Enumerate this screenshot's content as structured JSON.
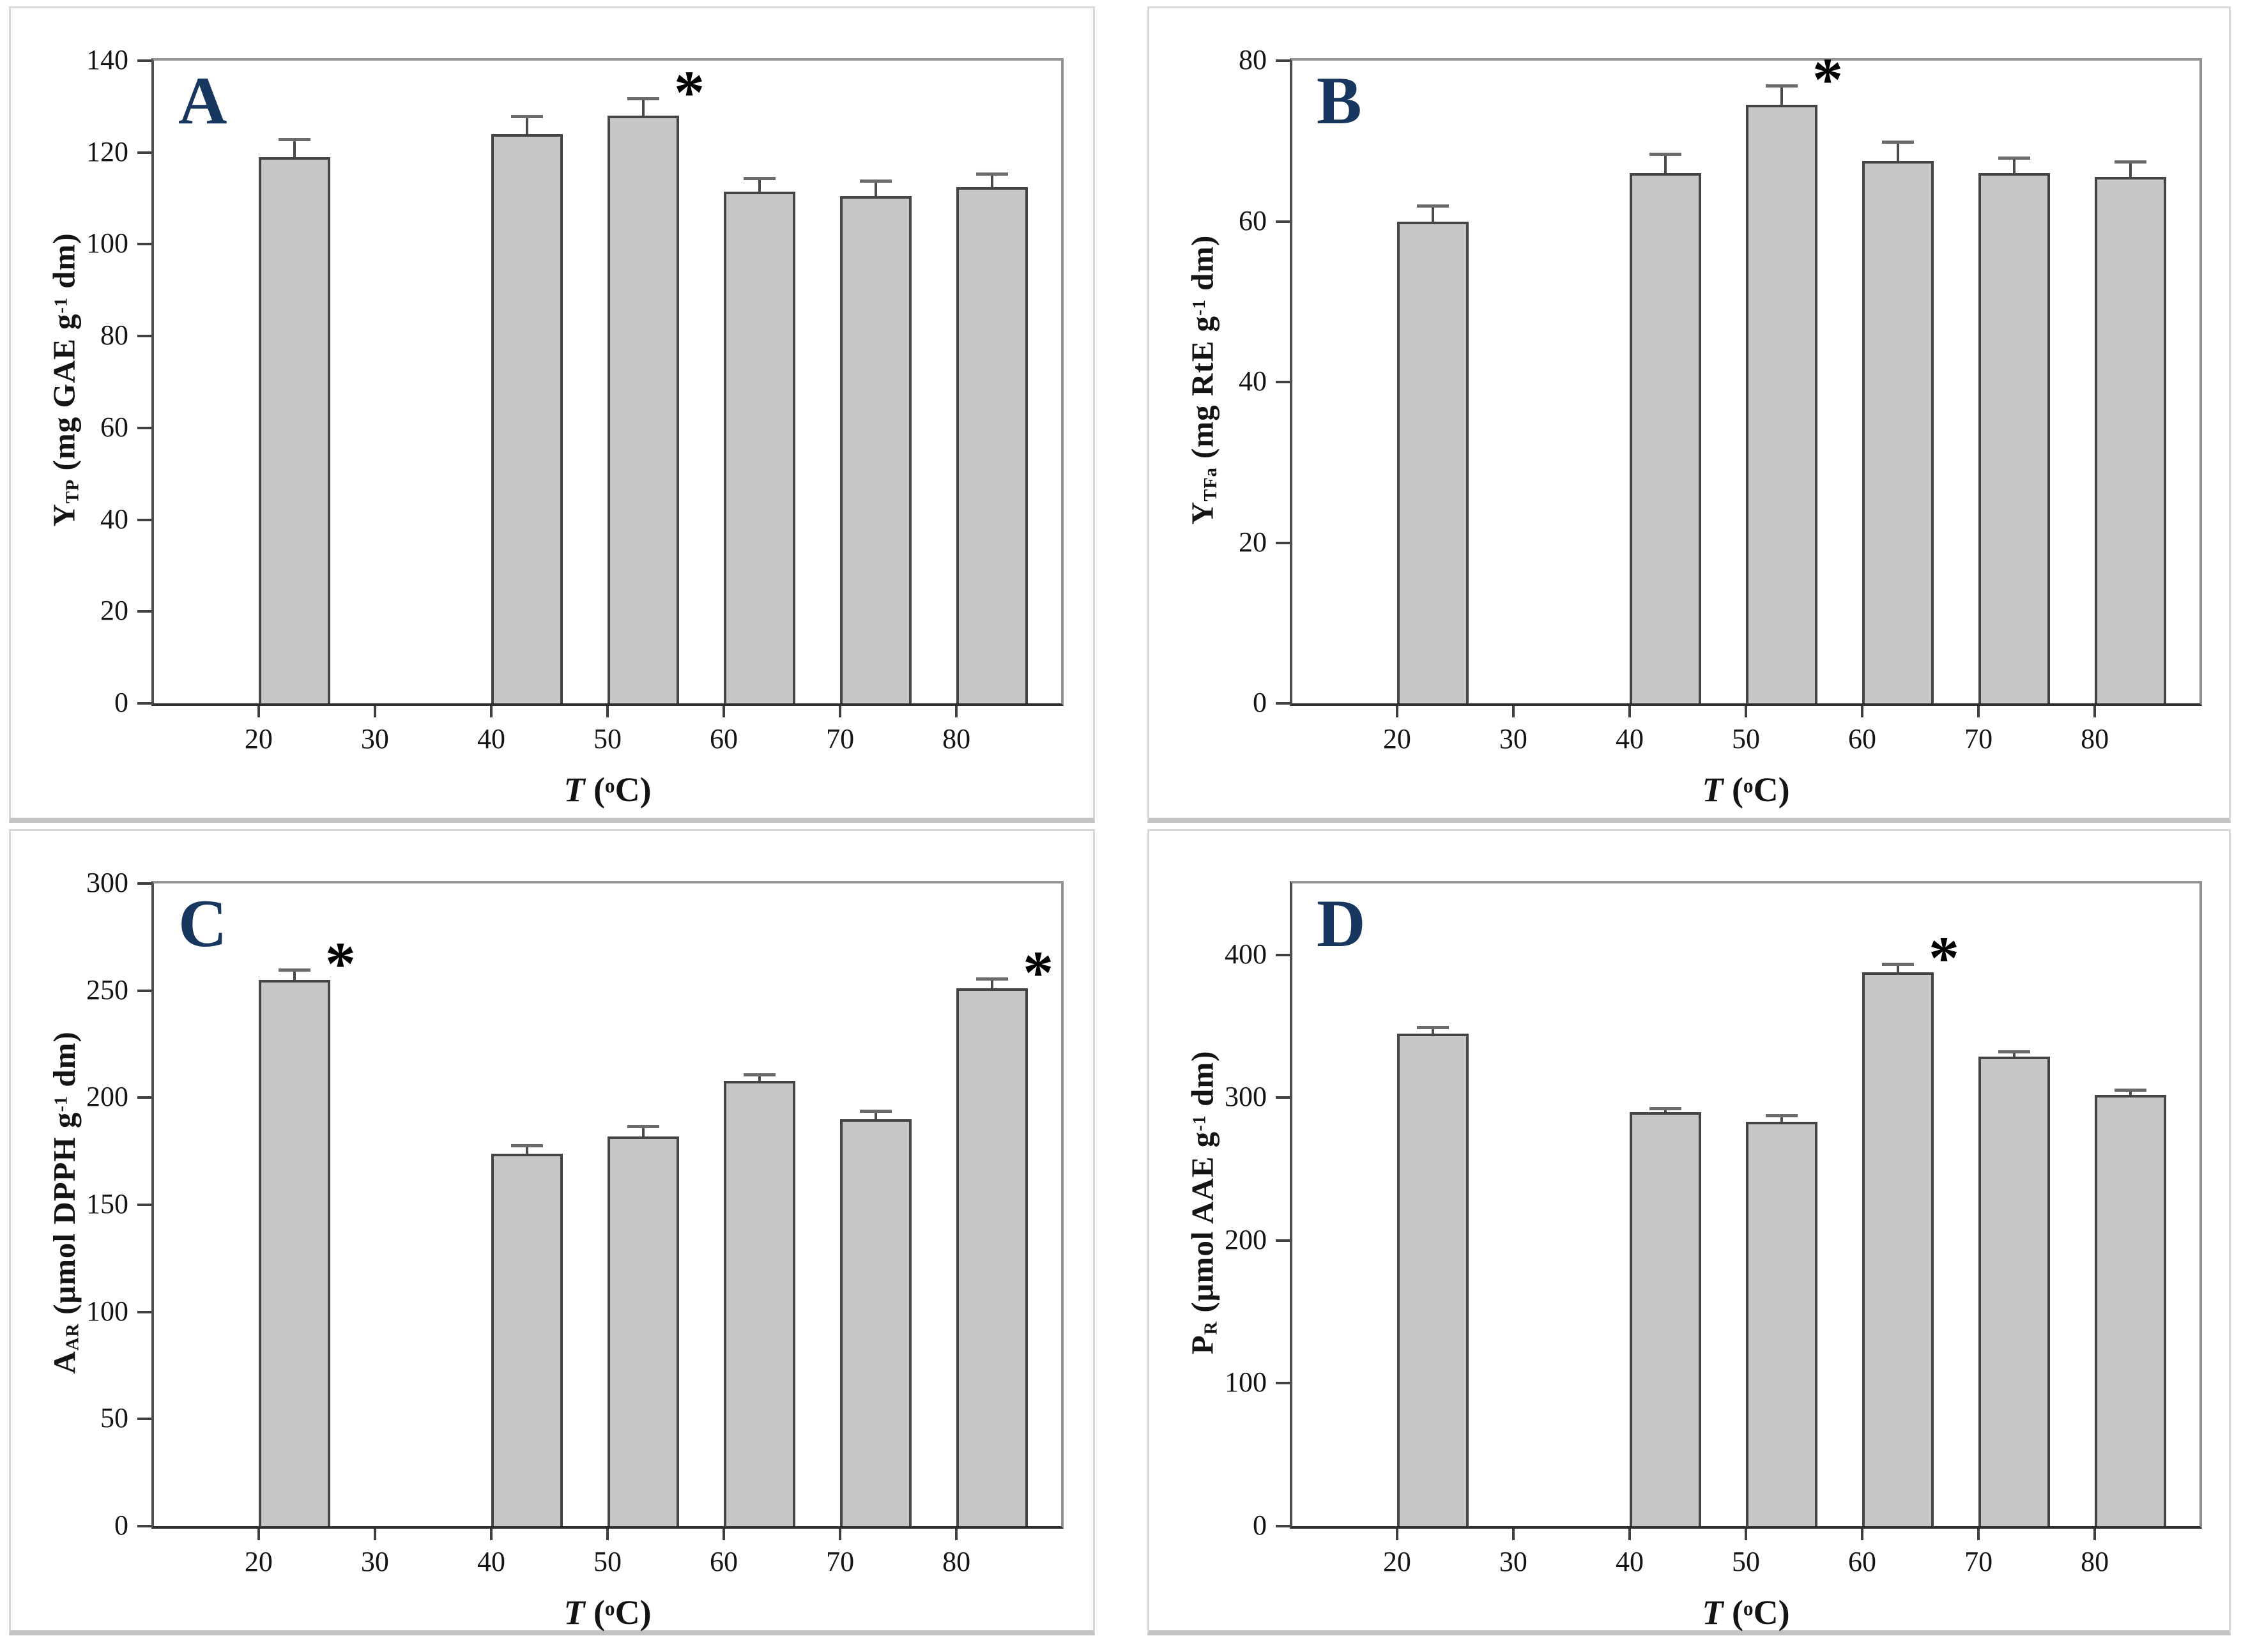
{
  "figure_title": "",
  "chart_data": [
    {
      "letter": "A",
      "type": "bar",
      "ylabel": "Y_TP (mg GAE g⁻¹ dm)",
      "ylabel_parts": {
        "base": "Y",
        "sub": "TP",
        "unit_pre": " (mg GAE g",
        "sup": "-1",
        "unit_post": " dm)"
      },
      "xlabel": "T (°C)",
      "xlabel_parts": {
        "base": "T",
        "pre": " (",
        "sup": "o",
        "post": "C)"
      },
      "ylim": [
        0,
        140
      ],
      "yticks": [
        0,
        20,
        40,
        60,
        80,
        100,
        120,
        140
      ],
      "categories": [
        "20",
        "30",
        "40",
        "50",
        "60",
        "70",
        "80"
      ],
      "values": [
        119,
        null,
        124,
        128,
        111.5,
        110.5,
        112.5
      ],
      "errors": [
        4,
        null,
        4,
        4,
        3,
        3.5,
        3
      ],
      "significant": [
        false,
        false,
        false,
        true,
        false,
        false,
        false
      ],
      "grid": false,
      "legend": null
    },
    {
      "letter": "B",
      "type": "bar",
      "ylabel": "Y_TFa (mg RtE g⁻¹ dm)",
      "ylabel_parts": {
        "base": "Y",
        "sub": "TFa",
        "unit_pre": " (mg RtE g",
        "sup": "-1",
        "unit_post": " dm)"
      },
      "xlabel": "T (°C)",
      "xlabel_parts": {
        "base": "T",
        "pre": " (",
        "sup": "o",
        "post": "C)"
      },
      "ylim": [
        0,
        80
      ],
      "yticks": [
        0,
        20,
        40,
        60,
        80
      ],
      "categories": [
        "20",
        "30",
        "40",
        "50",
        "60",
        "70",
        "80"
      ],
      "values": [
        60,
        null,
        66,
        74.5,
        67.5,
        66,
        65.5
      ],
      "errors": [
        2,
        null,
        2.5,
        2.5,
        2.5,
        2,
        2
      ],
      "significant": [
        false,
        false,
        false,
        true,
        false,
        false,
        false
      ],
      "grid": false,
      "legend": null
    },
    {
      "letter": "C",
      "type": "bar",
      "ylabel": "A_AR (μmol DPPH g⁻¹ dm)",
      "ylabel_parts": {
        "base": "A",
        "sub": "AR",
        "unit_pre": " (μmol DPPH g",
        "sup": "-1",
        "unit_post": " dm)"
      },
      "xlabel": "T (°C)",
      "xlabel_parts": {
        "base": "T",
        "pre": " (",
        "sup": "o",
        "post": "C)"
      },
      "ylim": [
        0,
        300
      ],
      "yticks": [
        0,
        50,
        100,
        150,
        200,
        250,
        300
      ],
      "categories": [
        "20",
        "30",
        "40",
        "50",
        "60",
        "70",
        "80"
      ],
      "values": [
        255,
        null,
        174,
        182,
        208,
        190,
        251
      ],
      "errors": [
        5,
        null,
        4,
        5,
        3,
        4,
        5
      ],
      "significant": [
        true,
        false,
        false,
        false,
        false,
        false,
        true
      ],
      "grid": false,
      "legend": null
    },
    {
      "letter": "D",
      "type": "bar",
      "ylabel": "P_R (μmol AAE g⁻¹ dm)",
      "ylabel_parts": {
        "base": "P",
        "sub": "R",
        "unit_pre": " (μmol AAE g",
        "sup": "-1",
        "unit_post": " dm)"
      },
      "xlabel": "T (°C)",
      "xlabel_parts": {
        "base": "T",
        "pre": " (",
        "sup": "o",
        "post": "C)"
      },
      "ylim": [
        0,
        450
      ],
      "yticks": [
        0,
        100,
        200,
        300,
        400
      ],
      "categories": [
        "20",
        "30",
        "40",
        "50",
        "60",
        "70",
        "80"
      ],
      "values": [
        345,
        null,
        290,
        283,
        388,
        329,
        302
      ],
      "errors": [
        5,
        null,
        3,
        5,
        6,
        4,
        4
      ],
      "significant": [
        false,
        false,
        false,
        false,
        true,
        false,
        false
      ],
      "grid": false,
      "legend": null
    }
  ],
  "style": {
    "bar_fill": "#c7c7c7",
    "bar_border": "#454545",
    "panel_letter_color": "#17375e",
    "error_color": "#4a4a4a",
    "asterisk": "*"
  }
}
